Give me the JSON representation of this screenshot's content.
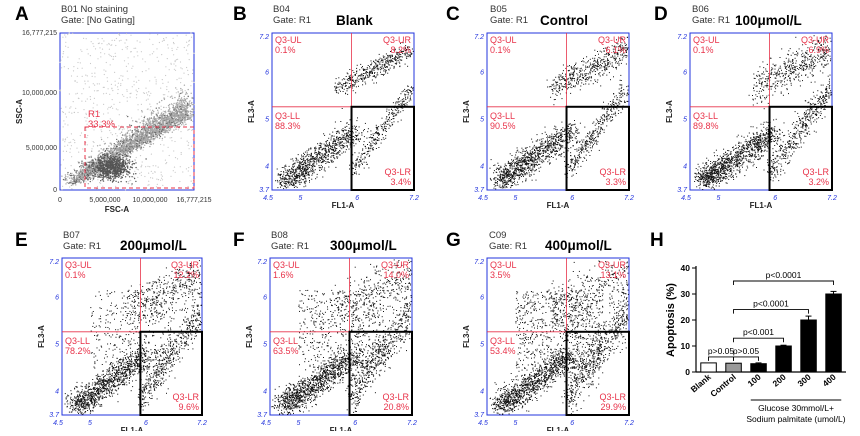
{
  "colors": {
    "axis_blue": "#2233dd",
    "gate_red": "#e8334a",
    "dots": "#111111",
    "dots_gray": "#9a9a9a",
    "bar_blank": "#ffffff",
    "bar_control": "#9a9a9a",
    "bar_treat": "#000000"
  },
  "panels": [
    {
      "letter": "A",
      "tag": "B01 No staining",
      "gate": "Gate: [No Gating]",
      "title": ""
    },
    {
      "letter": "B",
      "tag": "B04",
      "gate": "Gate: R1",
      "title": "Blank"
    },
    {
      "letter": "C",
      "tag": "B05",
      "gate": "Gate: R1",
      "title": "Control"
    },
    {
      "letter": "D",
      "tag": "B06",
      "gate": "Gate: R1",
      "title": "100μmol/L"
    },
    {
      "letter": "E",
      "tag": "B07",
      "gate": "Gate: R1",
      "title": "200μmol/L"
    },
    {
      "letter": "F",
      "tag": "B08",
      "gate": "Gate: R1",
      "title": "300μmol/L"
    },
    {
      "letter": "G",
      "tag": "C09",
      "gate": "Gate: R1",
      "title": "400μmol/L"
    },
    {
      "letter": "H",
      "tag": "",
      "gate": "",
      "title": ""
    }
  ],
  "scatter_a": {
    "xlabel": "FSC-A",
    "ylabel": "SSC-A",
    "x_ticks": [
      "0",
      "5,000,000",
      "10,000,000",
      "16,777,215"
    ],
    "y_ticks": [
      "0",
      "5,000,000",
      "10,000,000",
      "16,777,215"
    ],
    "gate_name": "R1",
    "gate_pct": "33.3%"
  },
  "quadrant_axes": {
    "xlabel": "FL1-A",
    "ylabel": "FL3-A",
    "x_ticks": [
      "4.5",
      "5",
      "6",
      "7.2"
    ],
    "y_ticks": [
      "3.7",
      "4",
      "5",
      "6",
      "7.2"
    ]
  },
  "quadrants": [
    {
      "ul": "Q3-UL",
      "ul_v": "0.1%",
      "ur": "Q3-UR",
      "ur_v": "8.2%",
      "ll": "Q3-LL",
      "ll_v": "88.3%",
      "lr": "Q3-LR",
      "lr_v": "3.4%"
    },
    {
      "ul": "Q3-UL",
      "ul_v": "0.1%",
      "ur": "Q3-UR",
      "ur_v": "6.1%",
      "ll": "Q3-LL",
      "ll_v": "90.5%",
      "lr": "Q3-LR",
      "lr_v": "3.3%"
    },
    {
      "ul": "Q3-UL",
      "ul_v": "0.1%",
      "ur": "Q3-UR",
      "ur_v": "6.9%",
      "ll": "Q3-LL",
      "ll_v": "89.8%",
      "lr": "Q3-LR",
      "lr_v": "3.2%"
    },
    {
      "ul": "Q3-UL",
      "ul_v": "0.1%",
      "ur": "Q3-UR",
      "ur_v": "12.2%",
      "ll": "Q3-LL",
      "ll_v": "78.2%",
      "lr": "Q3-LR",
      "lr_v": "9.6%"
    },
    {
      "ul": "Q3-UL",
      "ul_v": "1.6%",
      "ur": "Q3-UR",
      "ur_v": "14.0%",
      "ll": "Q3-LL",
      "ll_v": "63.5%",
      "lr": "Q3-LR",
      "lr_v": "20.8%"
    },
    {
      "ul": "Q3-UL",
      "ul_v": "3.5%",
      "ur": "Q3-UR",
      "ur_v": "13.1%",
      "ll": "Q3-LL",
      "ll_v": "53.4%",
      "lr": "Q3-LR",
      "lr_v": "29.9%"
    }
  ],
  "chart_data": {
    "type": "bar",
    "categories": [
      "Blank",
      "Control",
      "100",
      "200",
      "300",
      "400"
    ],
    "values": [
      3.5,
      3.4,
      3.2,
      10,
      20,
      30
    ],
    "errors": [
      0,
      0,
      0.3,
      0.3,
      1.5,
      1.0
    ],
    "ylabel": "Apoptosis (%)",
    "ylim": [
      0,
      40
    ],
    "y_ticks": [
      "0",
      "10",
      "20",
      "30",
      "40"
    ],
    "xgroup_label_1": "Glucose 30mmol/L+",
    "xgroup_label_2": "Sodium palmitate (umol/L)",
    "comparisons": [
      {
        "label": "p>0.05",
        "from": 0,
        "to": 1
      },
      {
        "label": "p>0.05",
        "from": 1,
        "to": 2
      },
      {
        "label": "p<0.001",
        "from": 1,
        "to": 3
      },
      {
        "label": "p<0.0001",
        "from": 1,
        "to": 4
      },
      {
        "label": "p<0.0001",
        "from": 1,
        "to": 5
      }
    ]
  }
}
